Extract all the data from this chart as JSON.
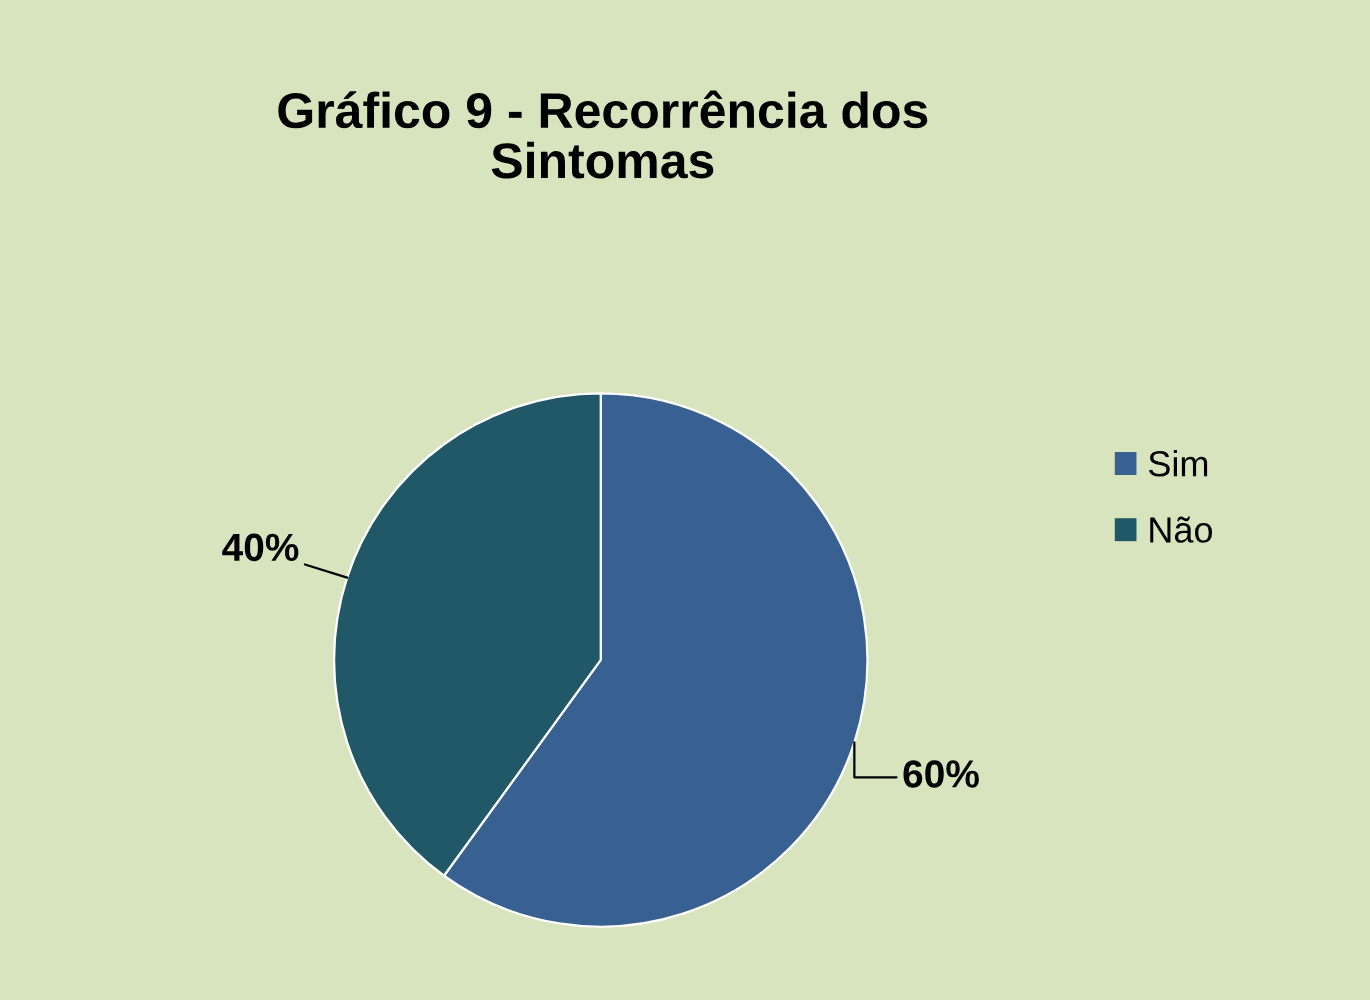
{
  "chart_data": {
    "type": "pie",
    "title": "Gráfico 9 - Recorrência dos\nSintomas",
    "categories": [
      "Sim",
      "Não"
    ],
    "values": [
      60,
      40
    ],
    "colors": [
      "#386192",
      "#215868"
    ],
    "value_labels": [
      "60%",
      "40%"
    ],
    "legend": "right"
  }
}
